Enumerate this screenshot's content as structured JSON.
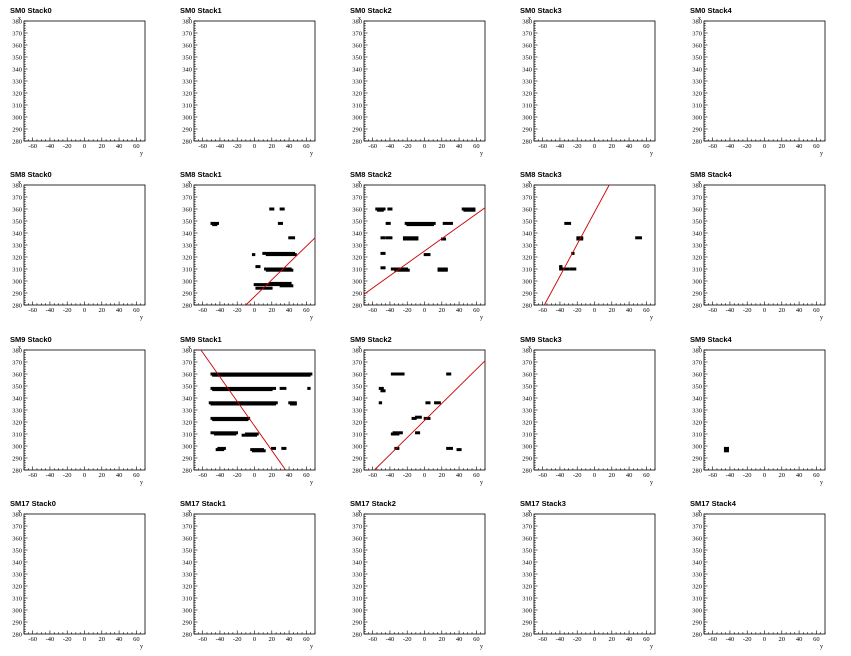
{
  "chart_data": {
    "type": "scatter",
    "grid": false,
    "xlabel": "y",
    "ylabel": "x",
    "xlim": [
      -70,
      70
    ],
    "ylim": [
      280,
      380
    ],
    "xticks": [
      -60,
      -40,
      -20,
      0,
      20,
      40,
      60
    ],
    "yticks": [
      280,
      290,
      300,
      310,
      320,
      330,
      340,
      350,
      360,
      370,
      380
    ],
    "marker_color": "#000000",
    "fit_color": "#cc0000",
    "rows": [
      "SM0",
      "SM8",
      "SM9",
      "SM17"
    ],
    "stacks": [
      "Stack0",
      "Stack1",
      "Stack2",
      "Stack3",
      "Stack4"
    ],
    "panels": [
      {
        "title": "SM0 Stack0",
        "segments": [],
        "fit": null
      },
      {
        "title": "SM0 Stack1",
        "segments": [],
        "fit": null
      },
      {
        "title": "SM0 Stack2",
        "segments": [],
        "fit": null
      },
      {
        "title": "SM0 Stack3",
        "segments": [],
        "fit": null
      },
      {
        "title": "SM0 Stack4",
        "segments": [],
        "fit": null
      },
      {
        "title": "SM8 Stack0",
        "segments": [],
        "fit": null
      },
      {
        "title": "SM8 Stack1",
        "segments": [
          [
            -50,
            -42,
            348
          ],
          [
            -48,
            -44,
            347
          ],
          [
            18,
            22,
            360
          ],
          [
            30,
            34,
            360
          ],
          [
            28,
            32,
            348
          ],
          [
            40,
            46,
            336
          ],
          [
            -2,
            0,
            322
          ],
          [
            2,
            6,
            312
          ],
          [
            10,
            46,
            323
          ],
          [
            14,
            48,
            322
          ],
          [
            12,
            42,
            310
          ],
          [
            14,
            44,
            309
          ],
          [
            18,
            42,
            298
          ],
          [
            0,
            32,
            297
          ],
          [
            30,
            44,
            296
          ],
          [
            2,
            20,
            294
          ]
        ],
        "fit": [
          [
            -10,
            280
          ],
          [
            70,
            336
          ]
        ]
      },
      {
        "title": "SM8 Stack2",
        "segments": [
          [
            -56,
            -46,
            360
          ],
          [
            -54,
            -48,
            359
          ],
          [
            -42,
            -38,
            360
          ],
          [
            -44,
            -40,
            348
          ],
          [
            -22,
            12,
            348
          ],
          [
            -20,
            10,
            347
          ],
          [
            22,
            32,
            348
          ],
          [
            44,
            58,
            360
          ],
          [
            46,
            58,
            359
          ],
          [
            -50,
            -46,
            336
          ],
          [
            -44,
            -38,
            336
          ],
          [
            -24,
            -8,
            336
          ],
          [
            -24,
            -8,
            335
          ],
          [
            20,
            24,
            335
          ],
          [
            -50,
            -46,
            323
          ],
          [
            0,
            6,
            322
          ],
          [
            -50,
            -46,
            311
          ],
          [
            -38,
            -20,
            310
          ],
          [
            -34,
            -18,
            309
          ],
          [
            16,
            26,
            310
          ],
          [
            16,
            26,
            309
          ]
        ],
        "fit": [
          [
            -70,
            289
          ],
          [
            70,
            361
          ]
        ]
      },
      {
        "title": "SM8 Stack3",
        "segments": [
          [
            -34,
            -28,
            348
          ],
          [
            -26,
            -24,
            323
          ],
          [
            -20,
            -14,
            336
          ],
          [
            -20,
            -14,
            335
          ],
          [
            -40,
            -38,
            312
          ],
          [
            -40,
            -30,
            310
          ],
          [
            -28,
            -22,
            310
          ],
          [
            48,
            54,
            336
          ]
        ],
        "fit": [
          [
            -58,
            280
          ],
          [
            17,
            380
          ]
        ]
      },
      {
        "title": "SM8 Stack4",
        "segments": [],
        "fit": null
      },
      {
        "title": "SM9 Stack0",
        "segments": [],
        "fit": null
      },
      {
        "title": "SM9 Stack1",
        "segments": [
          [
            -50,
            66,
            360
          ],
          [
            -48,
            64,
            359
          ],
          [
            -50,
            24,
            348
          ],
          [
            -48,
            20,
            347
          ],
          [
            30,
            36,
            348
          ],
          [
            62,
            64,
            348
          ],
          [
            -52,
            26,
            336
          ],
          [
            -50,
            24,
            335
          ],
          [
            40,
            48,
            336
          ],
          [
            42,
            48,
            335
          ],
          [
            -50,
            -6,
            323
          ],
          [
            -48,
            -8,
            322
          ],
          [
            -50,
            -20,
            311
          ],
          [
            -46,
            -22,
            310
          ],
          [
            -10,
            4,
            310
          ],
          [
            -14,
            2,
            309
          ],
          [
            -42,
            -34,
            298
          ],
          [
            -44,
            -36,
            297
          ],
          [
            -4,
            10,
            297
          ],
          [
            -2,
            12,
            296
          ],
          [
            20,
            24,
            298
          ],
          [
            32,
            36,
            298
          ]
        ],
        "fit": [
          [
            -62,
            380
          ],
          [
            36,
            280
          ]
        ]
      },
      {
        "title": "SM9 Stack2",
        "segments": [
          [
            -52,
            -48,
            348
          ],
          [
            -50,
            -46,
            346
          ],
          [
            -52,
            -50,
            336
          ],
          [
            -38,
            -24,
            360
          ],
          [
            26,
            30,
            360
          ],
          [
            2,
            6,
            336
          ],
          [
            12,
            18,
            336
          ],
          [
            0,
            6,
            323
          ],
          [
            -14,
            -10,
            323
          ],
          [
            -10,
            -4,
            324
          ],
          [
            -36,
            -26,
            311
          ],
          [
            -38,
            -30,
            310
          ],
          [
            -10,
            -6,
            311
          ],
          [
            -34,
            -30,
            298
          ],
          [
            26,
            32,
            298
          ],
          [
            38,
            42,
            297
          ]
        ],
        "fit": [
          [
            -58,
            280
          ],
          [
            70,
            371
          ]
        ]
      },
      {
        "title": "SM9 Stack3",
        "segments": [],
        "fit": null
      },
      {
        "title": "SM9 Stack4",
        "segments": [
          [
            -46,
            -42,
            298
          ],
          [
            -46,
            -42,
            296
          ]
        ],
        "fit": null
      },
      {
        "title": "SM17 Stack0",
        "segments": [],
        "fit": null
      },
      {
        "title": "SM17 Stack1",
        "segments": [],
        "fit": null
      },
      {
        "title": "SM17 Stack2",
        "segments": [],
        "fit": null
      },
      {
        "title": "SM17 Stack3",
        "segments": [],
        "fit": null
      },
      {
        "title": "SM17 Stack4",
        "segments": [],
        "fit": null
      }
    ]
  }
}
